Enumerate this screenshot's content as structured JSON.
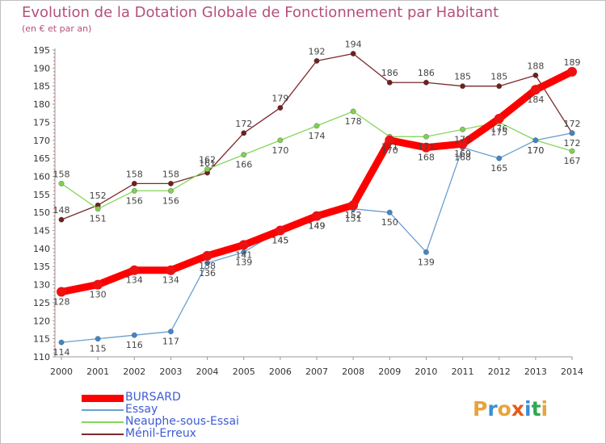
{
  "title": "Evolution de la Dotation Globale de Fonctionnement par Habitant",
  "subtitle": "(en € et par an)",
  "logo": {
    "letters": [
      "P",
      "r",
      "o",
      "x",
      "i",
      "t",
      "i"
    ],
    "colors": [
      "#e8a33d",
      "#3b8fd4",
      "#e8a33d",
      "#e25d1e",
      "#3b8fd4",
      "#2fa84f",
      "#e8a33d"
    ]
  },
  "chart_data": {
    "type": "line",
    "title": "Evolution de la Dotation Globale de Fonctionnement par Habitant",
    "subtitle": "(en € et par an)",
    "x": [
      "2000",
      "2001",
      "2002",
      "2003",
      "2004",
      "2005",
      "2006",
      "2007",
      "2008",
      "2009",
      "2010",
      "2011",
      "2012",
      "2013",
      "2014"
    ],
    "ylim": [
      110,
      195
    ],
    "yticks": [
      110,
      115,
      120,
      125,
      130,
      135,
      140,
      145,
      150,
      155,
      160,
      165,
      170,
      175,
      180,
      185,
      190,
      195
    ],
    "grid": false,
    "legend_position": "bottom-left",
    "series": [
      {
        "name": "BURSARD",
        "color": "#ff0000",
        "values": [
          128,
          130,
          134,
          134,
          138,
          141,
          145,
          149,
          152,
          170,
          168,
          169,
          176,
          184,
          189
        ],
        "line_width": 9,
        "marker_color": "#ee1111",
        "marker_r": 6
      },
      {
        "name": "Essay",
        "color": "#6a9fcf",
        "values": [
          114,
          115,
          116,
          117,
          136,
          139,
          145,
          149,
          151,
          150,
          139,
          168,
          165,
          170,
          172
        ],
        "line_width": 1.3,
        "marker_color": "#3f86c9",
        "marker_r": 3.2
      },
      {
        "name": "Neauphe-sous-Essai",
        "color": "#86d65c",
        "values": [
          158,
          151,
          156,
          156,
          162,
          166,
          170,
          174,
          178,
          171,
          171,
          173,
          175,
          170,
          167
        ],
        "line_width": 1.3,
        "marker_color": "#7fd14f",
        "marker_r": 3.2
      },
      {
        "name": "Ménil-Erreux",
        "color": "#7a2a2a",
        "values": [
          148,
          152,
          158,
          158,
          161,
          172,
          179,
          192,
          194,
          186,
          186,
          185,
          185,
          188,
          172
        ],
        "line_width": 1.3,
        "marker_color": "#6e1f1f",
        "marker_r": 3.2
      }
    ]
  }
}
